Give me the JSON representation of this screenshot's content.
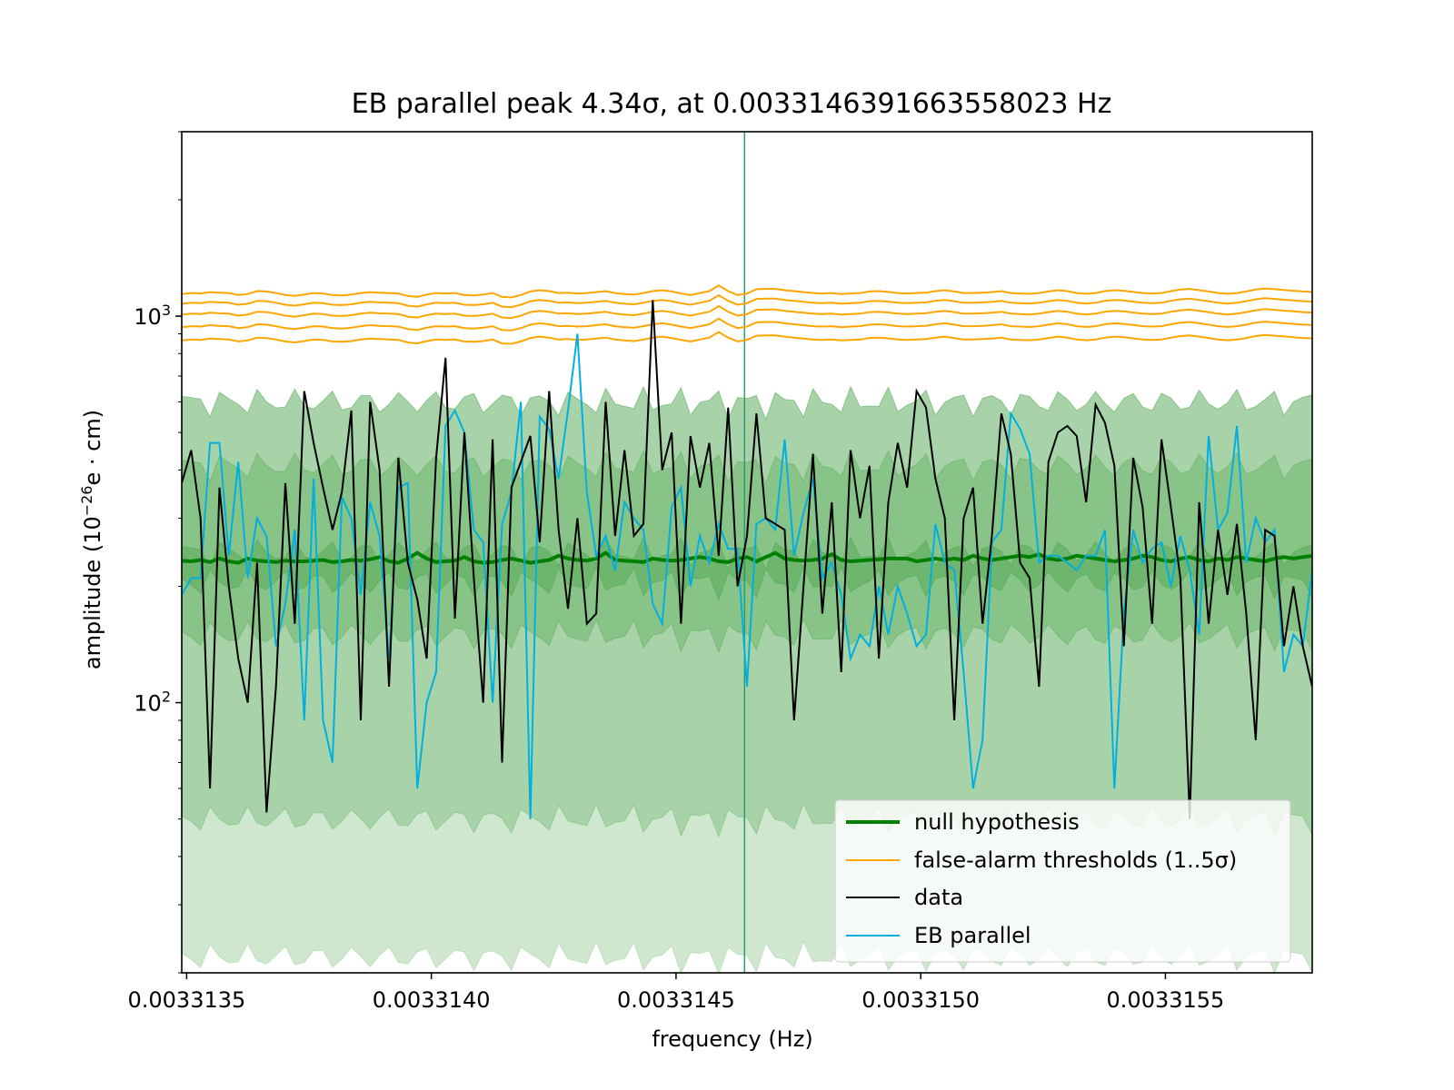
{
  "chart_data": {
    "type": "line",
    "title": "EB parallel peak 4.34σ, at 0.003314639166355802​3 Hz",
    "title_text": "EB parallel peak 4.34σ, at 0.0033146391663558023 Hz",
    "xlabel": "frequency (Hz)",
    "ylabel_prefix": "amplitude (10",
    "ylabel_exp": "−26",
    "ylabel_suffix": "e · cm)",
    "xlim": [
      0.00331349,
      0.0033158
    ],
    "ylim": [
      20,
      3000
    ],
    "y_scale": "log",
    "x_ticks": [
      0.0033135,
      0.003314,
      0.0033145,
      0.003315,
      0.0033155
    ],
    "x_tick_labels": [
      "0.0033135",
      "0.0033140",
      "0.0033145",
      "0.0033150",
      "0.0033155"
    ],
    "y_ticks": [
      100,
      1000
    ],
    "y_tick_base": "10",
    "y_tick_exps": [
      "2",
      "3"
    ],
    "peak_x": 0.00331464,
    "n_points": 121,
    "legend_position": "lower right",
    "colors": {
      "null": "#008000",
      "threshold": "#ffa500",
      "data": "#000000",
      "eb": "#00b0e0",
      "band": "#008000",
      "vline": "#2e9d6e"
    },
    "legend": [
      {
        "label": "null hypothesis",
        "key": "null"
      },
      {
        "label": "false-alarm thresholds (1..5σ)",
        "key": "threshold"
      },
      {
        "label": "data",
        "key": "data"
      },
      {
        "label": "EB parallel",
        "key": "eb"
      }
    ],
    "series": [
      {
        "name": "null hypothesis",
        "key": "null",
        "values": [
          233,
          232,
          234,
          231,
          236,
          232,
          230,
          236,
          233,
          232,
          231,
          233,
          232,
          232,
          233,
          234,
          231,
          232,
          234,
          233,
          235,
          238,
          232,
          230,
          236,
          244,
          236,
          231,
          232,
          233,
          238,
          232,
          230,
          231,
          234,
          236,
          233,
          230,
          232,
          234,
          240,
          236,
          234,
          233,
          236,
          244,
          234,
          233,
          232,
          231,
          236,
          234,
          233,
          234,
          236,
          238,
          236,
          232,
          231,
          236,
          238,
          232,
          238,
          244,
          236,
          234,
          233,
          234,
          236,
          242,
          234,
          232,
          233,
          234,
          235,
          236,
          236,
          236,
          232,
          234,
          236,
          234,
          236,
          234,
          240,
          236,
          234,
          236,
          238,
          240,
          238,
          242,
          236,
          234,
          236,
          240,
          238,
          236,
          234,
          232,
          234,
          236,
          240,
          238,
          234,
          232,
          236,
          238,
          234,
          232,
          236,
          234,
          238,
          236,
          234,
          232,
          236,
          238,
          236,
          238,
          240
        ]
      },
      {
        "name": "false-alarm thresholds",
        "key": "threshold",
        "sigma": 1,
        "values": [
          865,
          870,
          868,
          875,
          872,
          870,
          860,
          865,
          880,
          878,
          870,
          860,
          855,
          862,
          870,
          868,
          860,
          858,
          862,
          870,
          875,
          872,
          870,
          868,
          855,
          850,
          862,
          870,
          868,
          870,
          860,
          858,
          862,
          870,
          850,
          848,
          860,
          878,
          885,
          880,
          870,
          872,
          868,
          870,
          875,
          880,
          870,
          865,
          862,
          870,
          880,
          885,
          878,
          868,
          860,
          870,
          880,
          910,
          880,
          860,
          868,
          890,
          892,
          892,
          885,
          880,
          875,
          870,
          868,
          870,
          865,
          868,
          870,
          878,
          880,
          876,
          870,
          868,
          870,
          872,
          880,
          885,
          878,
          870,
          870,
          872,
          875,
          880,
          870,
          868,
          866,
          870,
          878,
          885,
          880,
          870,
          866,
          870,
          880,
          885,
          882,
          876,
          870,
          868,
          870,
          880,
          888,
          892,
          885,
          878,
          870,
          866,
          870,
          878,
          888,
          894,
          890,
          886,
          882,
          878,
          876
        ]
      },
      {
        "name": "data",
        "key": "data",
        "values": [
          370,
          450,
          300,
          60,
          360,
          200,
          130,
          100,
          230,
          52,
          110,
          370,
          160,
          640,
          470,
          360,
          280,
          350,
          570,
          90,
          600,
          400,
          110,
          430,
          230,
          185,
          130,
          430,
          780,
          165,
          500,
          210,
          100,
          480,
          70,
          360,
          420,
          490,
          260,
          640,
          280,
          175,
          300,
          160,
          170,
          600,
          270,
          450,
          270,
          290,
          1100,
          400,
          500,
          160,
          490,
          360,
          470,
          240,
          580,
          200,
          270,
          560,
          300,
          290,
          280,
          90,
          200,
          440,
          170,
          330,
          120,
          450,
          300,
          410,
          130,
          330,
          470,
          360,
          640,
          580,
          380,
          300,
          90,
          300,
          360,
          160,
          270,
          560,
          440,
          230,
          210,
          110,
          420,
          500,
          520,
          490,
          330,
          590,
          530,
          410,
          140,
          430,
          320,
          160,
          480,
          320,
          210,
          50,
          330,
          160,
          280,
          190,
          290,
          170,
          80,
          280,
          270,
          140,
          200,
          140,
          110
        ]
      },
      {
        "name": "EB parallel",
        "key": "eb",
        "values": [
          190,
          210,
          210,
          470,
          470,
          240,
          420,
          210,
          300,
          270,
          140,
          180,
          280,
          90,
          380,
          90,
          70,
          340,
          300,
          190,
          330,
          270,
          130,
          360,
          370,
          60,
          100,
          120,
          520,
          570,
          500,
          280,
          260,
          100,
          290,
          350,
          600,
          50,
          550,
          510,
          380,
          570,
          900,
          350,
          240,
          270,
          220,
          330,
          300,
          280,
          180,
          160,
          320,
          360,
          200,
          270,
          230,
          290,
          250,
          250,
          110,
          290,
          300,
          280,
          480,
          240,
          310,
          380,
          210,
          230,
          190,
          130,
          150,
          140,
          200,
          150,
          200,
          170,
          140,
          150,
          290,
          230,
          220,
          120,
          60,
          80,
          260,
          280,
          560,
          510,
          440,
          230,
          240,
          240,
          230,
          220,
          240,
          240,
          280,
          60,
          170,
          280,
          230,
          250,
          260,
          200,
          270,
          220,
          150,
          490,
          280,
          310,
          520,
          230,
          300,
          260,
          280,
          120,
          150,
          140,
          220
        ]
      }
    ],
    "threshold_offsets": [
      1.0,
      1.0826,
      1.1663,
      1.2446,
      1.3188
    ],
    "bands": [
      {
        "name": "band-95",
        "lower": 50,
        "upper": 600
      },
      {
        "name": "band-68",
        "lower": 150,
        "upper": 410
      },
      {
        "name": "band-core",
        "lower": 205,
        "upper": 245
      }
    ],
    "outer_lower": 22
  },
  "legend_labels": {
    "null": "null hypothesis",
    "threshold": "false-alarm thresholds (1..5σ)",
    "data": "data",
    "eb": "EB parallel"
  }
}
